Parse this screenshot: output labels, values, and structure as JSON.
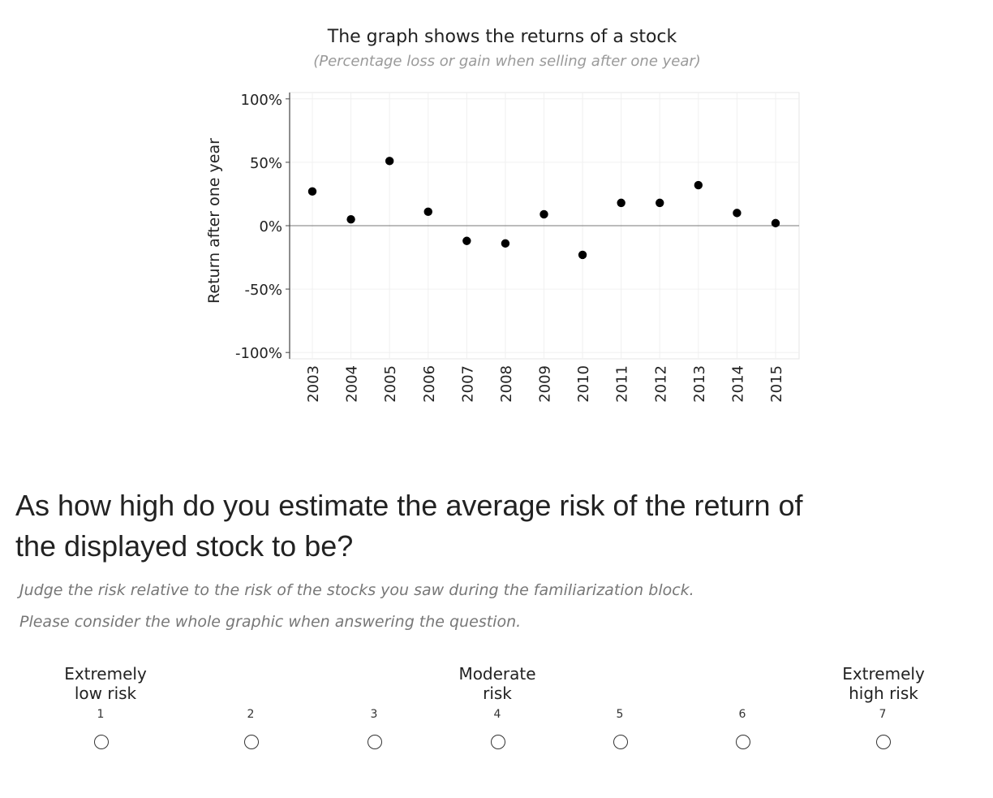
{
  "chart_data": {
    "type": "scatter",
    "title": "The graph shows the returns of a stock",
    "subtitle": "(Percentage  loss or gain when selling after one year)",
    "ylabel": "Return after one year",
    "xlabel": "",
    "categories": [
      "2003",
      "2004",
      "2005",
      "2006",
      "2007",
      "2008",
      "2009",
      "2010",
      "2011",
      "2012",
      "2013",
      "2014",
      "2015"
    ],
    "values": [
      27,
      5,
      51,
      11,
      -12,
      -14,
      9,
      -23,
      18,
      18,
      32,
      10,
      2
    ],
    "yticks": [
      "100%",
      "50%",
      "0%",
      "-50%",
      "-100%"
    ],
    "ytick_values": [
      100,
      50,
      0,
      -50,
      -100
    ],
    "ylim": [
      -105,
      105
    ],
    "grid": true,
    "zero_line": true
  },
  "question": {
    "text": "As how high do you estimate the average risk of the return of the displayed stock to be?",
    "hint1": "Judge the risk relative to the risk of the stocks you saw during the familiarization block.",
    "hint2": "Please consider the whole graphic when answering the question."
  },
  "scale": {
    "low_label_line1": "Extremely",
    "low_label_line2": "low risk",
    "mid_label_line1": "Moderate",
    "mid_label_line2": "risk",
    "high_label_line1": "Extremely",
    "high_label_line2": "high risk",
    "numbers": [
      "1",
      "2",
      "3",
      "4",
      "5",
      "6",
      "7"
    ],
    "selected": null
  }
}
